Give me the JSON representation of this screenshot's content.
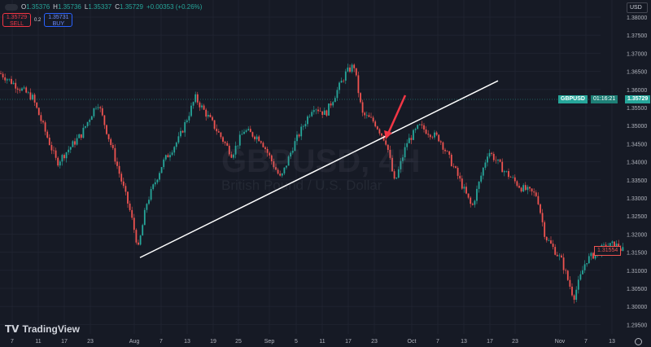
{
  "header": {
    "open_label": "O",
    "open": "1.35376",
    "high_label": "H",
    "high": "1.35736",
    "low_label": "L",
    "low": "1.35337",
    "close_label": "C",
    "close": "1.35729",
    "change": "+0.00353 (+0.26%)"
  },
  "trade": {
    "sell_price": "1.35729",
    "sell_label": "SELL",
    "spread": "0.2",
    "buy_price": "1.35731",
    "buy_label": "BUY"
  },
  "currency": "USD",
  "watermark": {
    "symbol": "GBPUSD, 4H",
    "name": "British Pound / U.S. Dollar"
  },
  "logo": "TradingView",
  "price_tag": {
    "symbol": "GBPUSD",
    "price": "1.35729",
    "countdown": "01:16:21"
  },
  "crosshair_price": "1.31554",
  "colors": {
    "up": "#26a69a",
    "down": "#ef5350",
    "background": "#161a25",
    "trendline": "#ffffff",
    "arrow": "#f23645"
  },
  "chart_data": {
    "type": "candlestick",
    "y_ticks": [
      "1.38000",
      "1.37500",
      "1.37000",
      "1.36500",
      "1.36000",
      "1.35500",
      "1.35000",
      "1.34500",
      "1.34000",
      "1.33500",
      "1.33000",
      "1.32500",
      "1.32000",
      "1.31500",
      "1.31000",
      "1.30500",
      "1.30000",
      "1.29500"
    ],
    "ylim": [
      1.295,
      1.38
    ],
    "x_ticks": [
      "7",
      "11",
      "17",
      "23",
      "Aug",
      "7",
      "13",
      "19",
      "25",
      "Sep",
      "5",
      "11",
      "17",
      "23",
      "Oct",
      "7",
      "13",
      "17",
      "23",
      "Nov",
      "7",
      "13"
    ],
    "approx_close_path": [
      1.3645,
      1.3577,
      1.3397,
      1.3476,
      1.3566,
      1.342,
      1.3262,
      1.316,
      1.3284,
      1.3397,
      1.3464,
      1.3577,
      1.351,
      1.342,
      1.3487,
      1.3464,
      1.3352,
      1.3442,
      1.3555,
      1.3532,
      1.3645,
      1.3667,
      1.3532,
      1.351,
      1.3453,
      1.334,
      1.3453,
      1.3498,
      1.3464,
      1.3374,
      1.3273,
      1.3431,
      1.3374,
      1.3329,
      1.3307,
      1.3194,
      1.3127,
      1.3025,
      1.3127,
      1.316,
      1.3172,
      1.3155
    ],
    "trendline": {
      "from": 1.3135,
      "to": 1.3624
    },
    "annotation": "red arrow pointing at trendline break"
  }
}
